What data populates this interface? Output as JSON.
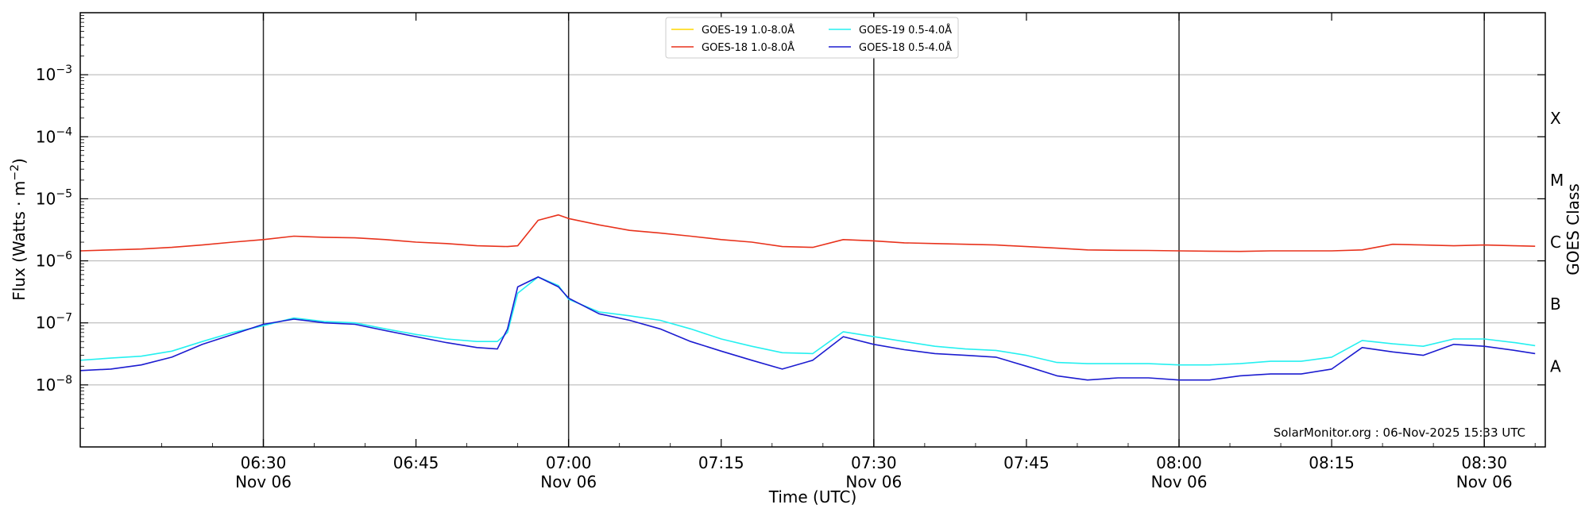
{
  "chart_data": {
    "type": "line",
    "title": "",
    "xlabel": "Time (UTC)",
    "ylabel_parts": [
      "Flux (Watts · m",
      "−2",
      ")"
    ],
    "right_label": "GOES Class",
    "y_scale": "log",
    "ylim": [
      1e-09,
      0.01
    ],
    "xlim": [
      "06:12",
      "08:36"
    ],
    "grid": "horizontal",
    "legend_position": "top-center",
    "y_ticks": [
      {
        "value": 1e-08,
        "base": "10",
        "exp": "−8"
      },
      {
        "value": 1e-07,
        "base": "10",
        "exp": "−7"
      },
      {
        "value": 1e-06,
        "base": "10",
        "exp": "−6"
      },
      {
        "value": 1e-05,
        "base": "10",
        "exp": "−5"
      },
      {
        "value": 0.0001,
        "base": "10",
        "exp": "−4"
      },
      {
        "value": 0.001,
        "base": "10",
        "exp": "−3"
      }
    ],
    "x_ticks": [
      {
        "time": "06:30",
        "label": "06:30",
        "date": "Nov 06"
      },
      {
        "time": "06:45",
        "label": "06:45",
        "date": ""
      },
      {
        "time": "07:00",
        "label": "07:00",
        "date": "Nov 06"
      },
      {
        "time": "07:15",
        "label": "07:15",
        "date": ""
      },
      {
        "time": "07:30",
        "label": "07:30",
        "date": "Nov 06"
      },
      {
        "time": "07:45",
        "label": "07:45",
        "date": ""
      },
      {
        "time": "08:00",
        "label": "08:00",
        "date": "Nov 06"
      },
      {
        "time": "08:15",
        "label": "08:15",
        "date": ""
      },
      {
        "time": "08:30",
        "label": "08:30",
        "date": "Nov 06"
      }
    ],
    "vertical_lines": [
      "06:30",
      "07:00",
      "07:30",
      "08:00",
      "08:30"
    ],
    "goes_classes": [
      {
        "label": "A",
        "value": 2e-08
      },
      {
        "label": "B",
        "value": 2e-07
      },
      {
        "label": "C",
        "value": 2e-06
      },
      {
        "label": "M",
        "value": 2e-05
      },
      {
        "label": "X",
        "value": 0.0002
      }
    ],
    "series": [
      {
        "name": "GOES-19 1.0-8.0Å",
        "color": "#ffd700",
        "x": [],
        "values": []
      },
      {
        "name": "GOES-18 1.0-8.0Å",
        "color": "#e8321c",
        "x": [
          "06:12",
          "06:15",
          "06:18",
          "06:21",
          "06:24",
          "06:27",
          "06:30",
          "06:33",
          "06:36",
          "06:39",
          "06:42",
          "06:45",
          "06:48",
          "06:51",
          "06:54",
          "06:55",
          "06:57",
          "06:59",
          "07:00",
          "07:03",
          "07:06",
          "07:09",
          "07:12",
          "07:15",
          "07:18",
          "07:21",
          "07:24",
          "07:27",
          "07:30",
          "07:33",
          "07:36",
          "07:39",
          "07:42",
          "07:45",
          "07:48",
          "07:51",
          "07:54",
          "07:57",
          "08:00",
          "08:03",
          "08:06",
          "08:09",
          "08:12",
          "08:15",
          "08:18",
          "08:21",
          "08:24",
          "08:27",
          "08:30",
          "08:33",
          "08:35"
        ],
        "values": [
          1.45e-06,
          1.5e-06,
          1.55e-06,
          1.65e-06,
          1.8e-06,
          2e-06,
          2.2e-06,
          2.5e-06,
          2.4e-06,
          2.35e-06,
          2.2e-06,
          2e-06,
          1.9e-06,
          1.75e-06,
          1.7e-06,
          1.75e-06,
          4.5e-06,
          5.5e-06,
          4.8e-06,
          3.8e-06,
          3.1e-06,
          2.8e-06,
          2.5e-06,
          2.2e-06,
          2e-06,
          1.7e-06,
          1.65e-06,
          2.2e-06,
          2.1e-06,
          1.95e-06,
          1.9e-06,
          1.85e-06,
          1.8e-06,
          1.7e-06,
          1.6e-06,
          1.5e-06,
          1.48e-06,
          1.47e-06,
          1.45e-06,
          1.43e-06,
          1.42e-06,
          1.45e-06,
          1.45e-06,
          1.45e-06,
          1.5e-06,
          1.85e-06,
          1.8e-06,
          1.75e-06,
          1.8e-06,
          1.75e-06,
          1.72e-06
        ]
      },
      {
        "name": "GOES-19 0.5-4.0Å",
        "color": "#25f0f0",
        "x": [
          "06:12",
          "06:15",
          "06:18",
          "06:21",
          "06:24",
          "06:27",
          "06:30",
          "06:33",
          "06:36",
          "06:39",
          "06:42",
          "06:45",
          "06:48",
          "06:51",
          "06:53",
          "06:54",
          "06:55",
          "06:57",
          "06:59",
          "07:00",
          "07:03",
          "07:06",
          "07:09",
          "07:12",
          "07:15",
          "07:18",
          "07:21",
          "07:24",
          "07:27",
          "07:30",
          "07:33",
          "07:36",
          "07:39",
          "07:42",
          "07:45",
          "07:48",
          "07:51",
          "07:54",
          "07:57",
          "08:00",
          "08:03",
          "08:06",
          "08:09",
          "08:12",
          "08:15",
          "08:18",
          "08:21",
          "08:24",
          "08:27",
          "08:30",
          "08:33",
          "08:35"
        ],
        "values": [
          2.5e-08,
          2.7e-08,
          2.9e-08,
          3.5e-08,
          5e-08,
          7e-08,
          9e-08,
          1.2e-07,
          1.05e-07,
          1e-07,
          8e-08,
          6.5e-08,
          5.5e-08,
          5e-08,
          5e-08,
          7e-08,
          3e-07,
          5.5e-07,
          4e-07,
          2.4e-07,
          1.5e-07,
          1.3e-07,
          1.1e-07,
          8e-08,
          5.5e-08,
          4.2e-08,
          3.3e-08,
          3.2e-08,
          7.2e-08,
          6e-08,
          5e-08,
          4.2e-08,
          3.8e-08,
          3.6e-08,
          3e-08,
          2.3e-08,
          2.2e-08,
          2.2e-08,
          2.2e-08,
          2.1e-08,
          2.1e-08,
          2.2e-08,
          2.4e-08,
          2.4e-08,
          2.8e-08,
          5.2e-08,
          4.6e-08,
          4.2e-08,
          5.5e-08,
          5.5e-08,
          4.8e-08,
          4.3e-08
        ]
      },
      {
        "name": "GOES-18 0.5-4.0Å",
        "color": "#1c1cd0",
        "x": [
          "06:12",
          "06:15",
          "06:18",
          "06:21",
          "06:24",
          "06:27",
          "06:30",
          "06:33",
          "06:36",
          "06:39",
          "06:42",
          "06:45",
          "06:48",
          "06:51",
          "06:53",
          "06:54",
          "06:55",
          "06:57",
          "06:59",
          "07:00",
          "07:03",
          "07:06",
          "07:09",
          "07:12",
          "07:15",
          "07:18",
          "07:21",
          "07:24",
          "07:27",
          "07:30",
          "07:33",
          "07:36",
          "07:39",
          "07:42",
          "07:45",
          "07:48",
          "07:51",
          "07:54",
          "07:57",
          "08:00",
          "08:03",
          "08:06",
          "08:09",
          "08:12",
          "08:15",
          "08:18",
          "08:21",
          "08:24",
          "08:27",
          "08:30",
          "08:33",
          "08:35"
        ],
        "values": [
          1.7e-08,
          1.8e-08,
          2.1e-08,
          2.8e-08,
          4.5e-08,
          6.5e-08,
          9.5e-08,
          1.15e-07,
          1e-07,
          9.5e-08,
          7.5e-08,
          6e-08,
          4.8e-08,
          4e-08,
          3.8e-08,
          8e-08,
          3.8e-07,
          5.5e-07,
          3.8e-07,
          2.5e-07,
          1.4e-07,
          1.1e-07,
          8e-08,
          5e-08,
          3.5e-08,
          2.5e-08,
          1.8e-08,
          2.5e-08,
          6e-08,
          4.5e-08,
          3.7e-08,
          3.2e-08,
          3e-08,
          2.8e-08,
          2e-08,
          1.4e-08,
          1.2e-08,
          1.3e-08,
          1.3e-08,
          1.2e-08,
          1.2e-08,
          1.4e-08,
          1.5e-08,
          1.5e-08,
          1.8e-08,
          4e-08,
          3.4e-08,
          3e-08,
          4.5e-08,
          4.2e-08,
          3.6e-08,
          3.2e-08
        ]
      }
    ],
    "watermark": "SolarMonitor.org : 06-Nov-2025 15:33 UTC"
  }
}
